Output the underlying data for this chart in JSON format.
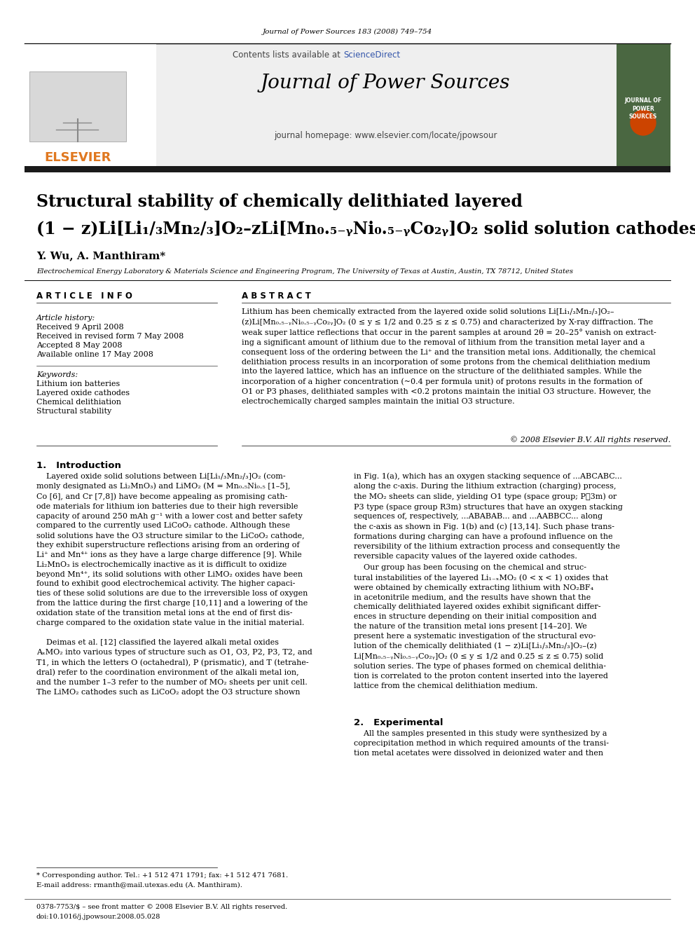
{
  "journal_ref": "Journal of Power Sources 183 (2008) 749–754",
  "journal_name": "Journal of Power Sources",
  "journal_homepage": "journal homepage: www.elsevier.com/locate/jpowsour",
  "title_line1": "Structural stability of chemically delithiated layered",
  "title_line2": "(1 − z)Li[Li₁/₃Mn₂/₃]O₂–zLi[Mn₀.₅₋ᵧNi₀.₅₋ᵧCo₂ᵧ]O₂ solid solution cathodes",
  "authors": "Y. Wu, A. Manthiram*",
  "affiliation": "Electrochemical Energy Laboratory & Materials Science and Engineering Program, The University of Texas at Austin, Austin, TX 78712, United States",
  "article_info_header": "A R T I C L E   I N F O",
  "abstract_header": "A B S T R A C T",
  "article_history_label": "Article history:",
  "received": "Received 9 April 2008",
  "revised": "Received in revised form 7 May 2008",
  "accepted": "Accepted 8 May 2008",
  "available": "Available online 17 May 2008",
  "keywords_label": "Keywords:",
  "keywords": [
    "Lithium ion batteries",
    "Layered oxide cathodes",
    "Chemical delithiation",
    "Structural stability"
  ],
  "abstract_text": "Lithium has been chemically extracted from the layered oxide solid solutions Li[Li₁/₃Mn₂/₃]O₂–\n(z)Li[Mn₀.₅₋ᵧNi₀.₅₋ᵧCo₂ᵧ]O₂ (0 ≤ y ≤ 1/2 and 0.25 ≤ z ≤ 0.75) and characterized by X-ray diffraction. The\nweak super lattice reflections that occur in the parent samples at around 2θ = 20–25° vanish on extract-\ning a significant amount of lithium due to the removal of lithium from the transition metal layer and a\nconsequent loss of the ordering between the Li⁺ and the transition metal ions. Additionally, the chemical\ndelithiation process results in an incorporation of some protons from the chemical delithiation medium\ninto the layered lattice, which has an influence on the structure of the delithiated samples. While the\nincorporation of a higher concentration (~0.4 per formula unit) of protons results in the formation of\nO1 or P3 phases, delithiated samples with <0.2 protons maintain the initial O3 structure. However, the\nelectrochemically charged samples maintain the initial O3 structure.",
  "copyright": "© 2008 Elsevier B.V. All rights reserved.",
  "intro_header": "1.   Introduction",
  "intro_left_p1": "    Layered oxide solid solutions between Li[Li₁/₃Mn₂/₃]O₂ (com-\nmonly designated as Li₂MnO₃) and LiMO₂ (M = Mn₀.₅Ni₀.₅ [1–5],\nCo [6], and Cr [7,8]) have become appealing as promising cath-\node materials for lithium ion batteries due to their high reversible\ncapacity of around 250 mAh g⁻¹ with a lower cost and better safety\ncompared to the currently used LiCoO₂ cathode. Although these\nsolid solutions have the O3 structure similar to the LiCoO₂ cathode,\nthey exhibit superstructure reflections arising from an ordering of\nLi⁺ and Mn⁴⁺ ions as they have a large charge difference [9]. While\nLi₂MnO₃ is electrochemically inactive as it is difficult to oxidize\nbeyond Mn⁴⁺, its solid solutions with other LiMO₂ oxides have been\nfound to exhibit good electrochemical activity. The higher capaci-\nties of these solid solutions are due to the irreversible loss of oxygen\nfrom the lattice during the first charge [10,11] and a lowering of the\noxidation state of the transition metal ions at the end of first dis-\ncharge compared to the oxidation state value in the initial material.",
  "intro_left_p2": "    Deimas et al. [12] classified the layered alkali metal oxides\nAₓMO₂ into various types of structure such as O1, O3, P2, P3, T2, and\nT1, in which the letters O (octahedral), P (prismatic), and T (tetrahe-\ndral) refer to the coordination environment of the alkali metal ion,\nand the number 1–3 refer to the number of MO₂ sheets per unit cell.\nThe LiMO₂ cathodes such as LiCoO₂ adopt the O3 structure shown",
  "intro_right_p1": "in Fig. 1(a), which has an oxygen stacking sequence of ...ABCABC...\nalong the c-axis. During the lithium extraction (charging) process,\nthe MO₂ sheets can slide, yielding O1 type (space group; P㌁3m) or\nP3 type (space group R3m) structures that have an oxygen stacking\nsequences of, respectively, ...ABABAB... and ...AABBCC... along\nthe c-axis as shown in Fig. 1(b) and (c) [13,14]. Such phase trans-\nformations during charging can have a profound influence on the\nreversibility of the lithium extraction process and consequently the\nreversible capacity values of the layered oxide cathodes.",
  "intro_right_p2": "    Our group has been focusing on the chemical and struc-\ntural instabilities of the layered Li₁₋ₓMO₂ (0 < x < 1) oxides that\nwere obtained by chemically extracting lithium with NO₂BF₄\nin acetonitrile medium, and the results have shown that the\nchemically delithiated layered oxides exhibit significant differ-\nences in structure depending on their initial composition and\nthe nature of the transition metal ions present [14–20]. We\npresent here a systematic investigation of the structural evo-\nlution of the chemically delithiated (1 − z)Li[Li₁/₃Mn₂/₃]O₂–(z)\nLi[Mn₀.₅₋ᵧNi₀.₅₋ᵧCo₂ᵧ]O₂ (0 ≤ y ≤ 1/2 and 0.25 ≤ z ≤ 0.75) solid\nsolution series. The type of phases formed on chemical delithia-\ntion is correlated to the proton content inserted into the layered\nlattice from the chemical delithiation medium.",
  "exp_header": "2.   Experimental",
  "exp_text": "    All the samples presented in this study were synthesized by a\ncoprecipitation method in which required amounts of the transi-\ntion metal acetates were dissolved in deionized water and then",
  "footnote_star": "* Corresponding author. Tel.: +1 512 471 1791; fax: +1 512 471 7681.",
  "footnote_email": "E-mail address: rmanth@mail.utexas.edu (A. Manthiram).",
  "footer_issn": "0378-7753/$ – see front matter © 2008 Elsevier B.V. All rights reserved.",
  "footer_doi": "doi:10.1016/j.jpowsour.2008.05.028",
  "header_bg_color": "#efefef",
  "dark_bar_color": "#1a1a1a",
  "orange_color": "#E07820",
  "green_journal_color": "#4a6741",
  "sciencedirect_color": "#3355AA"
}
